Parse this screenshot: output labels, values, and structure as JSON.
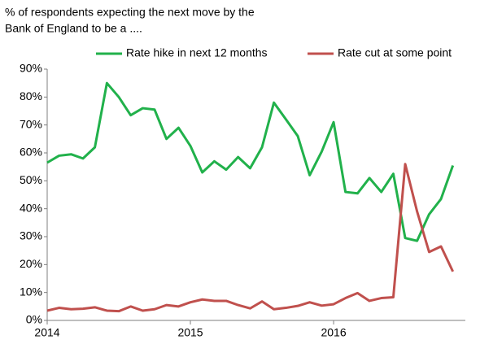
{
  "chart_data": {
    "type": "line",
    "title": [
      "% of respondents expecting the next move by the",
      "Bank of England  to be a ...."
    ],
    "x": [
      2014.0,
      2014.083,
      2014.167,
      2014.25,
      2014.333,
      2014.417,
      2014.5,
      2014.583,
      2014.667,
      2014.75,
      2014.833,
      2014.917,
      2015.0,
      2015.083,
      2015.167,
      2015.25,
      2015.333,
      2015.417,
      2015.5,
      2015.583,
      2015.667,
      2015.75,
      2015.833,
      2015.917,
      2016.0,
      2016.083,
      2016.167,
      2016.25,
      2016.333,
      2016.417,
      2016.5,
      2016.583,
      2016.667,
      2016.75,
      2016.833
    ],
    "series": [
      {
        "name": "Rate hike in next 12 months",
        "color": "#21b14b",
        "values": [
          56.5,
          59,
          59.5,
          58,
          62,
          85,
          80,
          73.5,
          76,
          75.5,
          65,
          69,
          62.5,
          53,
          57,
          54,
          58.5,
          54.5,
          62,
          78,
          72,
          66,
          52,
          60.5,
          71,
          46,
          45.5,
          51,
          46,
          52.5,
          29.5,
          28.5,
          38,
          43.5,
          55.5
        ]
      },
      {
        "name": "Rate cut at some point",
        "color": "#c0504d",
        "values": [
          3.5,
          4.5,
          4,
          4.2,
          4.7,
          3.5,
          3.3,
          5,
          3.5,
          4,
          5.5,
          5,
          6.5,
          7.5,
          7,
          7,
          5.5,
          4.3,
          6.8,
          4,
          4.5,
          5.2,
          6.5,
          5.3,
          5.8,
          8,
          9.8,
          7,
          8,
          8.3,
          56,
          39,
          24.5,
          26.5,
          17.5
        ]
      }
    ],
    "xlim": [
      2014,
      2016.92
    ],
    "xticks": [
      2014,
      2015,
      2016
    ],
    "ylim": [
      0,
      90
    ],
    "yticks": [
      {
        "value": 0,
        "label": "0%"
      },
      {
        "value": 10,
        "label": "10%"
      },
      {
        "value": 20,
        "label": "20%"
      },
      {
        "value": 30,
        "label": "30%"
      },
      {
        "value": 40,
        "label": "40%"
      },
      {
        "value": 50,
        "label": "50%"
      },
      {
        "value": 60,
        "label": "60%"
      },
      {
        "value": 70,
        "label": "70%"
      },
      {
        "value": 80,
        "label": "80%"
      },
      {
        "value": 90,
        "label": "90%"
      }
    ],
    "grid": false,
    "legend": "top"
  }
}
